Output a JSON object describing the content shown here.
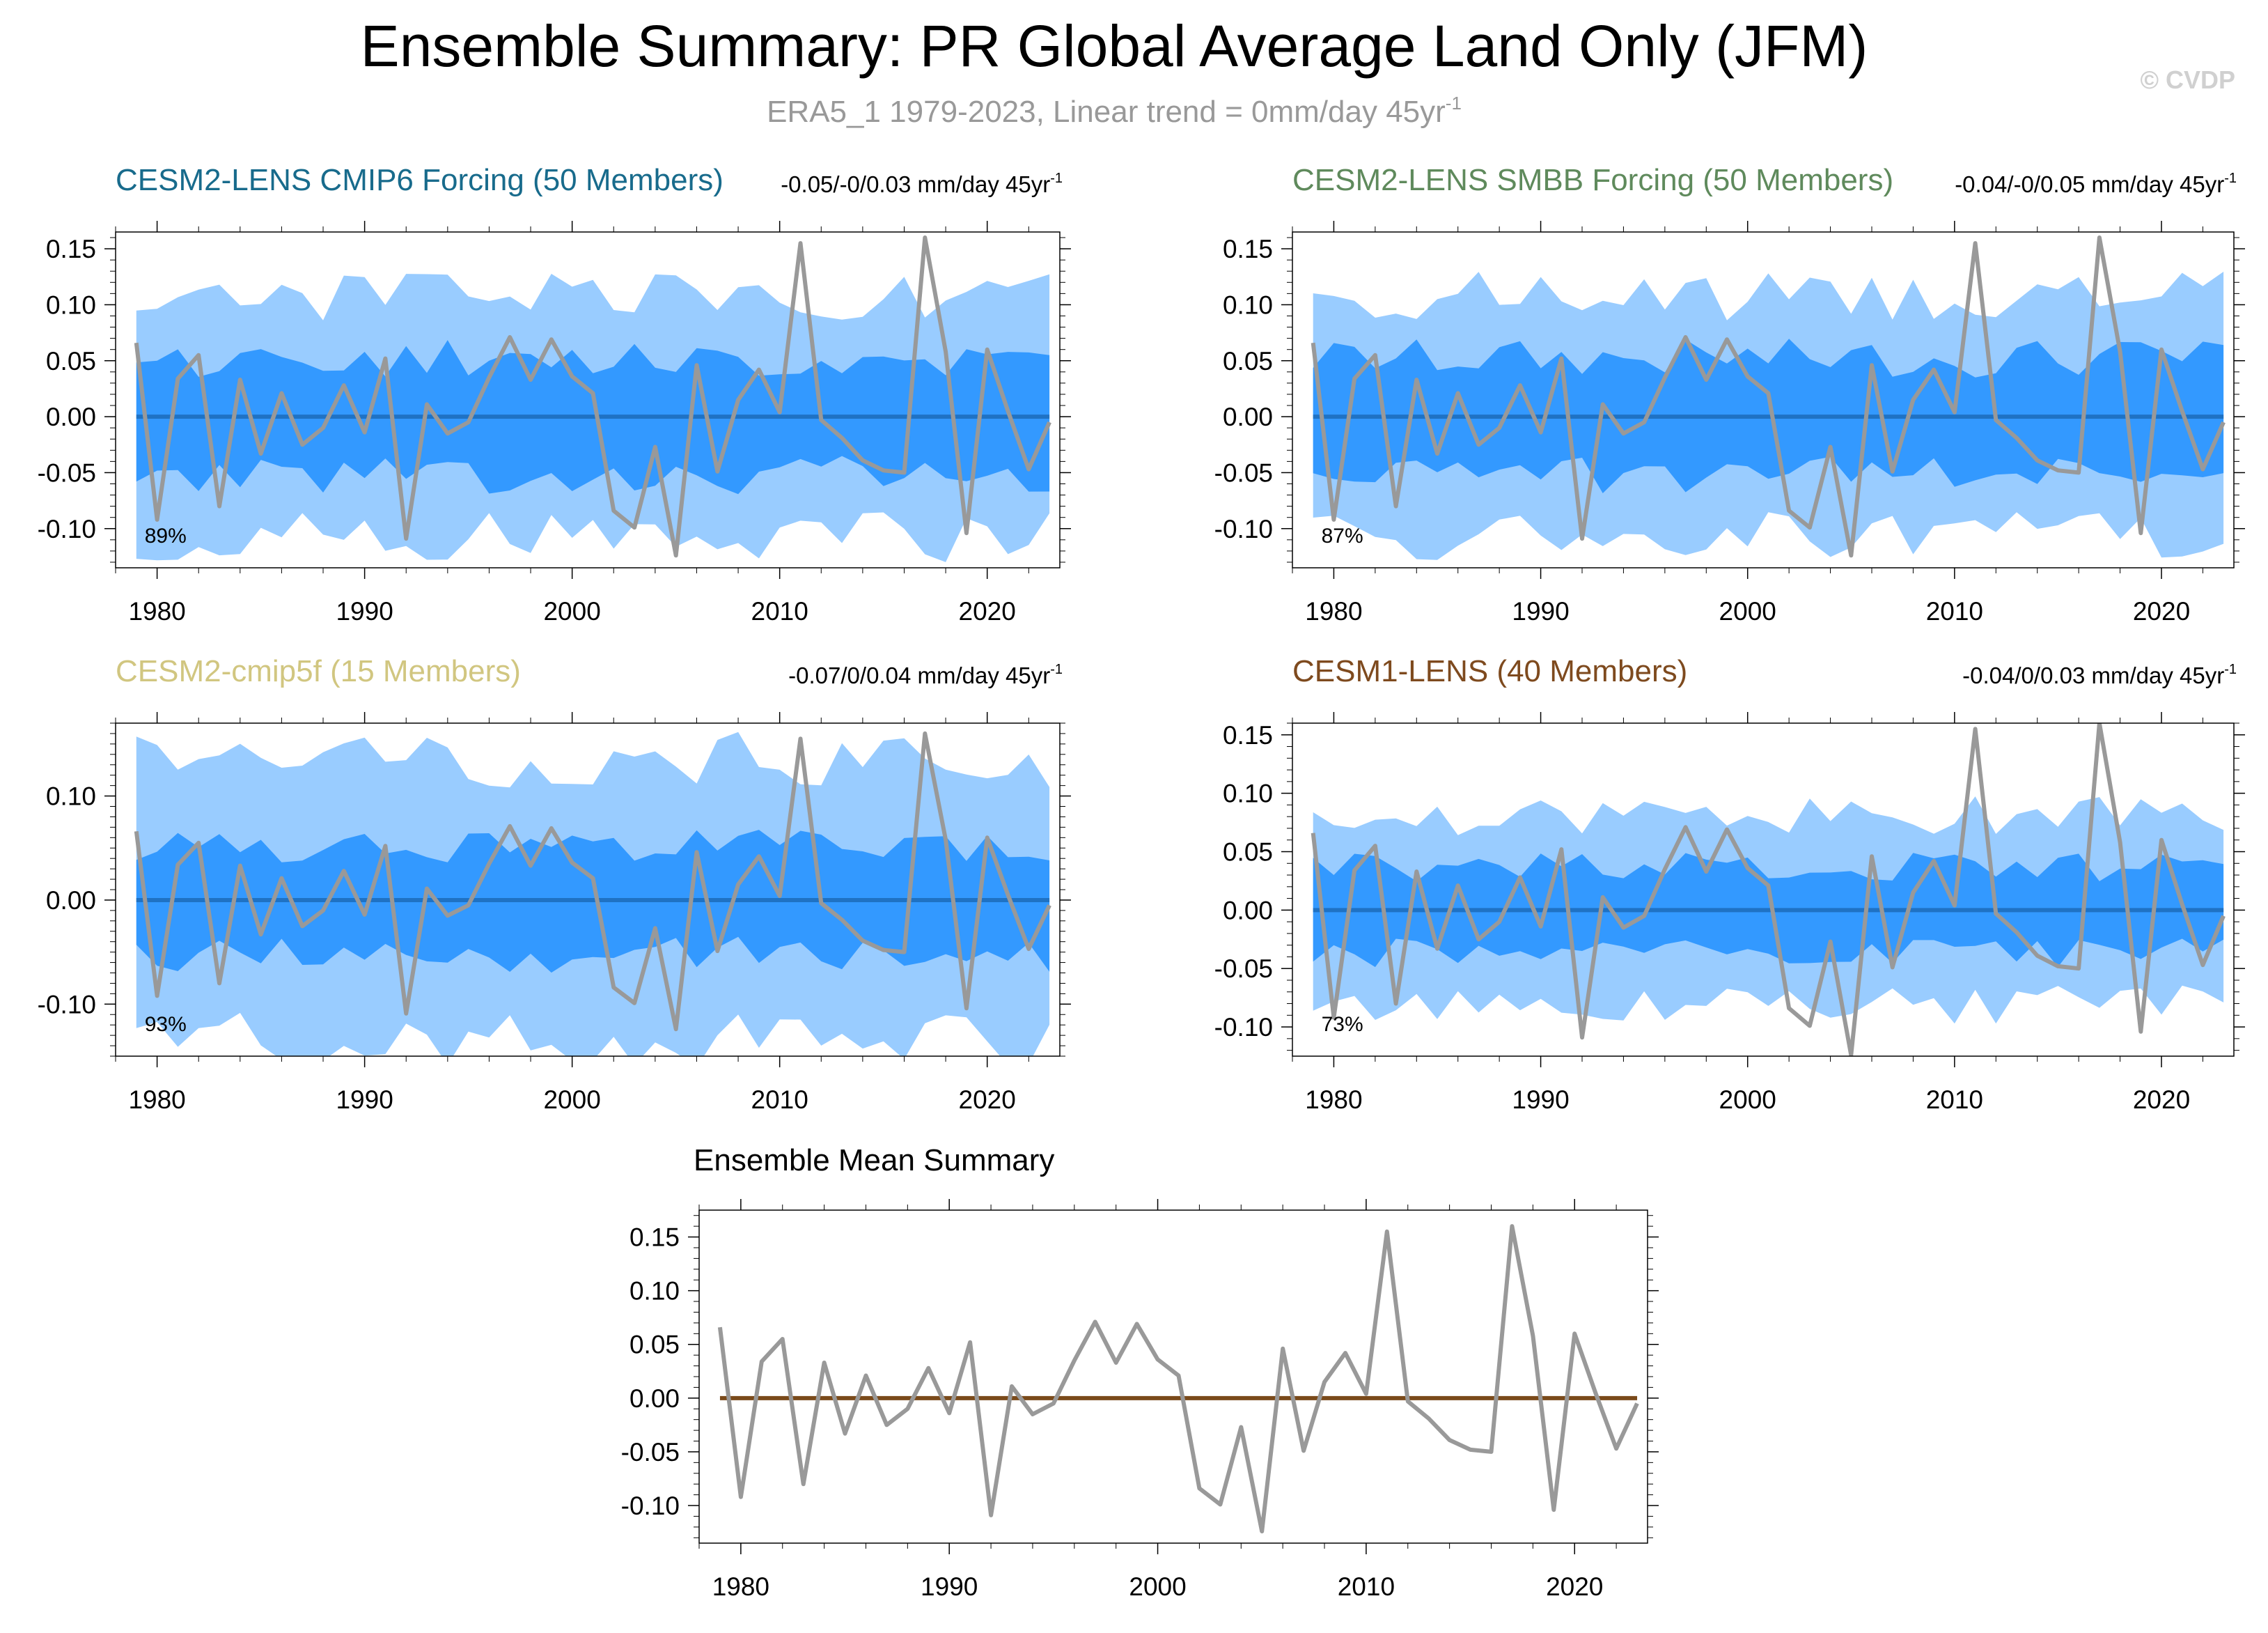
{
  "title": "Ensemble Summary: PR Global Average Land Only (JFM)",
  "subtitle": "ERA5_1 1979-2023, Linear trend = 0mm/day 45yr",
  "subtitle_sup": "-1",
  "watermark": "© CVDP",
  "colors": {
    "title": "#000000",
    "subtitle": "#999999",
    "watermark": "#d0d0d0",
    "band_outer": "#99ccff",
    "band_inner": "#3399ff",
    "ens_mean": "#1f72c4",
    "obs": "#999999",
    "bottom_mean": "#7a4a1a",
    "panel1_title": "#186b8c",
    "panel2_title": "#5f8a5c",
    "panel3_title": "#d1c680",
    "panel4_title": "#7e4a1e"
  },
  "chart_data": [
    {
      "type": "line",
      "title": "CESM2-LENS CMIP6 Forcing (50 Members)",
      "trend_text": "-0.05/-0/0.03 mm/day 45yr",
      "trend_sup": "-1",
      "percent": "89%",
      "xlim": [
        1978,
        2023.5
      ],
      "ylim": [
        -0.135,
        0.165
      ],
      "yticks": [
        0.15,
        0.1,
        0.05,
        0.0,
        -0.05,
        -0.1
      ],
      "ytick_labels": [
        "0.15",
        "0.10",
        "0.05",
        "0.00",
        "-0.05",
        "-0.10"
      ],
      "xticks": [
        1980,
        1990,
        2000,
        2010,
        2020
      ],
      "xtick_labels": [
        "1980",
        "1990",
        "2000",
        "2010",
        "2020"
      ],
      "band_scale": [
        1.0,
        1.0
      ],
      "seed": 3
    },
    {
      "type": "line",
      "title": "CESM2-LENS SMBB Forcing (50 Members)",
      "trend_text": "-0.04/-0/0.05 mm/day 45yr",
      "trend_sup": "-1",
      "percent": "87%",
      "xlim": [
        1978,
        2023.5
      ],
      "ylim": [
        -0.135,
        0.165
      ],
      "yticks": [
        0.15,
        0.1,
        0.05,
        0.0,
        -0.05,
        -0.1
      ],
      "ytick_labels": [
        "0.15",
        "0.10",
        "0.05",
        "0.00",
        "-0.05",
        "-0.10"
      ],
      "xticks": [
        1980,
        1990,
        2000,
        2010,
        2020
      ],
      "xtick_labels": [
        "1980",
        "1990",
        "2000",
        "2010",
        "2020"
      ],
      "band_scale": [
        1.0,
        1.0
      ],
      "seed": 7
    },
    {
      "type": "line",
      "title": "CESM2-cmip5f (15 Members)",
      "trend_text": "-0.07/0/0.04 mm/day 45yr",
      "trend_sup": "-1",
      "percent": "93%",
      "xlim": [
        1978,
        2023.5
      ],
      "ylim": [
        -0.15,
        0.17
      ],
      "yticks": [
        0.1,
        0.0,
        -0.1
      ],
      "ytick_labels": [
        "0.10",
        "0.00",
        "-0.10"
      ],
      "xticks": [
        1980,
        1990,
        2000,
        2010,
        2020
      ],
      "xtick_labels": [
        "1980",
        "1990",
        "2000",
        "2010",
        "2020"
      ],
      "band_scale": [
        1.25,
        1.0
      ],
      "seed": 11
    },
    {
      "type": "line",
      "title": "CESM1-LENS (40 Members)",
      "trend_text": "-0.04/0/0.03 mm/day 45yr",
      "trend_sup": "-1",
      "percent": "73%",
      "xlim": [
        1978,
        2023.5
      ],
      "ylim": [
        -0.125,
        0.16
      ],
      "yticks": [
        0.15,
        0.1,
        0.05,
        0.0,
        -0.05,
        -0.1
      ],
      "ytick_labels": [
        "0.15",
        "0.10",
        "0.05",
        "0.00",
        "-0.05",
        "-0.10"
      ],
      "xticks": [
        1980,
        1990,
        2000,
        2010,
        2020
      ],
      "xtick_labels": [
        "1980",
        "1990",
        "2000",
        "2010",
        "2020"
      ],
      "band_scale": [
        0.75,
        0.7
      ],
      "seed": 19
    },
    {
      "type": "line",
      "title": "Ensemble Mean Summary",
      "xlim": [
        1978,
        2023.5
      ],
      "ylim": [
        -0.135,
        0.175
      ],
      "yticks": [
        0.15,
        0.1,
        0.05,
        0.0,
        -0.05,
        -0.1
      ],
      "ytick_labels": [
        "0.15",
        "0.10",
        "0.05",
        "0.00",
        "-0.05",
        "-0.10"
      ],
      "xticks": [
        1980,
        1990,
        2000,
        2010,
        2020
      ],
      "xtick_labels": [
        "1980",
        "1990",
        "2000",
        "2010",
        "2020"
      ]
    }
  ],
  "observed": {
    "years": [
      1979,
      1980,
      1981,
      1982,
      1983,
      1984,
      1985,
      1986,
      1987,
      1988,
      1989,
      1990,
      1991,
      1992,
      1993,
      1994,
      1995,
      1996,
      1997,
      1998,
      1999,
      2000,
      2001,
      2002,
      2003,
      2004,
      2005,
      2006,
      2007,
      2008,
      2009,
      2010,
      2011,
      2012,
      2013,
      2014,
      2015,
      2016,
      2017,
      2018,
      2019,
      2020,
      2021,
      2022,
      2023
    ],
    "values": [
      0.066,
      -0.092,
      0.034,
      0.055,
      -0.08,
      0.033,
      -0.033,
      0.021,
      -0.025,
      -0.01,
      0.028,
      -0.014,
      0.052,
      -0.109,
      0.011,
      -0.015,
      -0.005,
      0.035,
      0.071,
      0.033,
      0.069,
      0.036,
      0.021,
      -0.084,
      -0.099,
      -0.027,
      -0.124,
      0.046,
      -0.049,
      0.015,
      0.042,
      0.004,
      0.155,
      -0.003,
      -0.019,
      -0.039,
      -0.048,
      -0.05,
      0.16,
      0.058,
      -0.104,
      0.06,
      0.005,
      -0.047,
      -0.005
    ]
  }
}
